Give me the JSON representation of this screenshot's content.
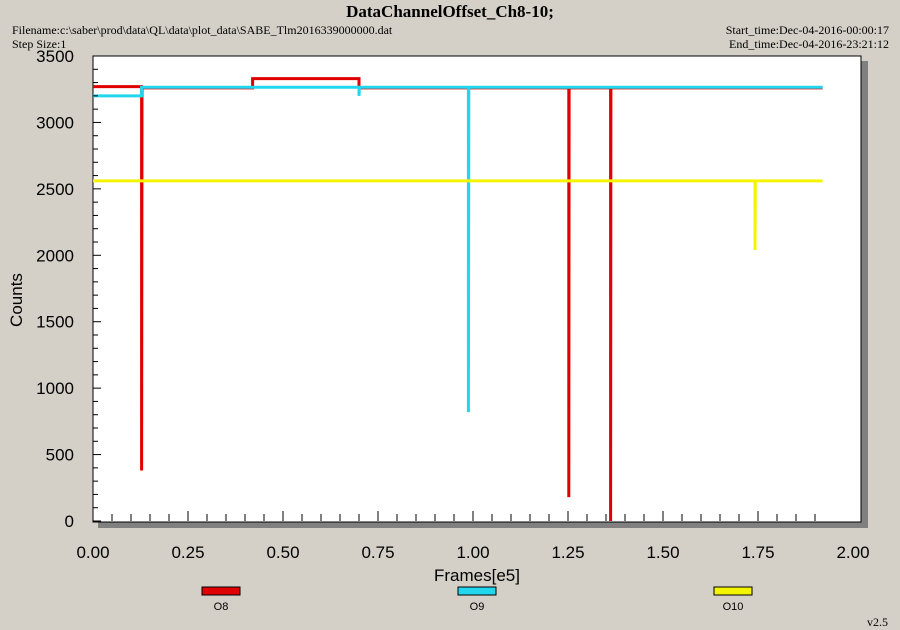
{
  "header": {
    "title": "DataChannelOffset_Ch8-10;",
    "filename": "Filename:c:\\saber\\prod\\data\\QL\\data\\plot_data\\SABE_Tlm2016339000000.dat",
    "step_size": "Step Size:1",
    "start_time": "Start_time:Dec-04-2016-00:00:17",
    "end_time": "End_time:Dec-04-2016-23:21:12"
  },
  "version": "v2.5",
  "colors": {
    "O8": "#e00000",
    "O9": "#22d6ee",
    "O10": "#f4f400",
    "plot_bg": "#ffffff",
    "window_bg": "#d4d0c8"
  },
  "chart_data": {
    "type": "line",
    "title": "DataChannelOffset_Ch8-10;",
    "xlabel": "Frames[e5]",
    "ylabel": "Counts",
    "xlim": [
      0,
      2.0
    ],
    "ylim": [
      0,
      3500
    ],
    "xticks": [
      "0.00",
      "0.25",
      "0.50",
      "0.75",
      "1.00",
      "1.25",
      "1.50",
      "1.75",
      "2.00"
    ],
    "yticks": [
      "0",
      "500",
      "1000",
      "1500",
      "2000",
      "2500",
      "3000",
      "3500"
    ],
    "grid": false,
    "legend_position": "bottom",
    "series": [
      {
        "name": "O8",
        "color": "#e00000",
        "points": [
          [
            0.0,
            3270
          ],
          [
            0.128,
            3270
          ],
          [
            0.128,
            380
          ],
          [
            0.129,
            3260
          ],
          [
            0.42,
            3260
          ],
          [
            0.42,
            3330
          ],
          [
            0.7,
            3330
          ],
          [
            0.7,
            3260
          ],
          [
            1.252,
            3260
          ],
          [
            1.252,
            180
          ],
          [
            1.253,
            3260
          ],
          [
            1.362,
            3260
          ],
          [
            1.362,
            0
          ],
          [
            1.363,
            3260
          ],
          [
            1.92,
            3260
          ]
        ]
      },
      {
        "name": "O9",
        "color": "#22d6ee",
        "points": [
          [
            0.0,
            3200
          ],
          [
            0.128,
            3200
          ],
          [
            0.128,
            3265
          ],
          [
            0.7,
            3265
          ],
          [
            0.7,
            3200
          ],
          [
            0.701,
            3265
          ],
          [
            0.988,
            3265
          ],
          [
            0.988,
            820
          ],
          [
            0.989,
            3265
          ],
          [
            1.92,
            3265
          ]
        ]
      },
      {
        "name": "O10",
        "color": "#f4f400",
        "points": [
          [
            0.0,
            2560
          ],
          [
            1.742,
            2560
          ],
          [
            1.742,
            2040
          ],
          [
            1.743,
            2560
          ],
          [
            1.92,
            2560
          ]
        ]
      }
    ]
  }
}
